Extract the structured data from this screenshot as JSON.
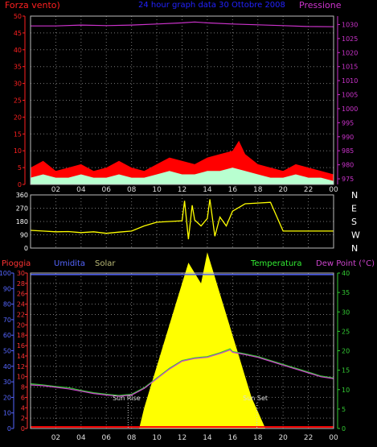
{
  "header": {
    "left_title": "Forza vento)",
    "center_title": "24 hour graph data  30 Ottobre 2008",
    "right_title": "Pressione",
    "colors": {
      "left": "#ff2020",
      "center": "#2222ff",
      "right": "#cc33cc"
    }
  },
  "chart_data": [
    {
      "type": "area",
      "panel": "wind-pressure",
      "x_ticks": [
        "02",
        "04",
        "06",
        "08",
        "10",
        "12",
        "14",
        "16",
        "18",
        "20",
        "22",
        "00"
      ],
      "y_left": {
        "ticks": [
          0,
          5,
          10,
          15,
          20,
          25,
          30,
          35,
          40,
          45,
          50
        ],
        "ylim": [
          0,
          50
        ],
        "color": "#ff2020"
      },
      "y_right": {
        "ticks": [
          975,
          980,
          985,
          990,
          995,
          1000,
          1005,
          1010,
          1015,
          1020,
          1025,
          1030
        ],
        "ylim": [
          973,
          1033
        ],
        "color": "#cc33cc"
      },
      "grid": true,
      "series": [
        {
          "role": "wind-gust",
          "color": "#ff0000",
          "x": [
            0,
            1,
            2,
            3,
            4,
            5,
            6,
            7,
            8,
            9,
            10,
            11,
            12,
            13,
            14,
            15,
            16,
            16.5,
            17,
            18,
            19,
            20,
            21,
            22,
            23,
            24
          ],
          "values": [
            5,
            7,
            4,
            5,
            6,
            4,
            5,
            7,
            5,
            4,
            6,
            8,
            7,
            6,
            8,
            9,
            10,
            13,
            9,
            6,
            5,
            4,
            6,
            5,
            4,
            3
          ]
        },
        {
          "role": "wind-speed",
          "color": "#b8ffd0",
          "x": [
            0,
            1,
            2,
            3,
            4,
            5,
            6,
            7,
            8,
            9,
            10,
            11,
            12,
            13,
            14,
            15,
            16,
            17,
            18,
            19,
            20,
            21,
            22,
            23,
            24
          ],
          "values": [
            2,
            3,
            2,
            2,
            3,
            2,
            2,
            3,
            2,
            2,
            3,
            4,
            3,
            3,
            4,
            4,
            5,
            4,
            3,
            2,
            2,
            3,
            2,
            2,
            1
          ]
        },
        {
          "role": "pressure",
          "color": "#cc33cc",
          "x": [
            0,
            2,
            4,
            6,
            8,
            10,
            12,
            13,
            14,
            16,
            18,
            20,
            22,
            24
          ],
          "values": [
            1029.5,
            1029.5,
            1029.8,
            1029.6,
            1029.8,
            1030.2,
            1030.6,
            1030.9,
            1030.6,
            1030.2,
            1029.9,
            1029.6,
            1029.3,
            1029.2
          ]
        }
      ]
    },
    {
      "type": "line",
      "panel": "wind-direction",
      "y_left": {
        "ticks": [
          0,
          90,
          180,
          270,
          360
        ],
        "ylim": [
          0,
          360
        ]
      },
      "y_right_labels": [
        "N",
        "W",
        "S",
        "E",
        "N"
      ],
      "grid": true,
      "series": [
        {
          "role": "direction",
          "color": "#ffff00",
          "x": [
            0,
            1,
            2,
            3,
            4,
            5,
            6,
            7,
            8,
            9,
            10,
            11,
            12,
            12.2,
            12.5,
            12.8,
            13,
            13.5,
            14,
            14.2,
            14.6,
            15,
            15.5,
            16,
            17,
            18,
            19,
            20,
            21,
            22,
            23,
            24
          ],
          "values": [
            120,
            115,
            110,
            112,
            105,
            110,
            100,
            108,
            115,
            150,
            175,
            180,
            185,
            320,
            60,
            290,
            190,
            150,
            200,
            330,
            80,
            210,
            150,
            250,
            300,
            305,
            310,
            115,
            115,
            115,
            115,
            115
          ]
        }
      ]
    },
    {
      "type": "area",
      "panel": "rain-humidity-solar-temp",
      "x_ticks": [
        "02",
        "04",
        "06",
        "08",
        "10",
        "12",
        "14",
        "16",
        "18",
        "20",
        "22",
        "00"
      ],
      "y_humidity": {
        "ticks": [
          0,
          10,
          20,
          30,
          40,
          50,
          60,
          70,
          80,
          90,
          100
        ],
        "ylim": [
          0,
          100
        ],
        "color": "#5566ff"
      },
      "y_rain": {
        "ticks": [
          0,
          2,
          4,
          6,
          8,
          10,
          12,
          14,
          16,
          18,
          20,
          22,
          24,
          26,
          28,
          30
        ],
        "ylim": [
          0,
          30
        ],
        "color": "#ff3333"
      },
      "y_temp": {
        "ticks": [
          0,
          5,
          10,
          15,
          20,
          25,
          30,
          35,
          40
        ],
        "ylim": [
          0,
          40
        ],
        "color": "#33cc33"
      },
      "grid": true,
      "series": [
        {
          "role": "solar",
          "color": "#ffff00",
          "x": [
            8.6,
            9,
            9.5,
            10,
            10.5,
            11,
            11.5,
            12,
            12.5,
            13,
            13.5,
            14,
            14.5,
            15,
            15.5,
            16,
            16.5,
            17,
            17.5,
            18.6
          ],
          "values": [
            0,
            4,
            8,
            12,
            16,
            20,
            24,
            28,
            32,
            30,
            28,
            34,
            30,
            26,
            22,
            18,
            14,
            10,
            6,
            0
          ]
        },
        {
          "role": "humidity",
          "color": "#5566ff",
          "x": [
            0,
            24
          ],
          "values": [
            99,
            99
          ]
        },
        {
          "role": "temperature",
          "color": "#33cc33",
          "x": [
            0,
            1,
            2,
            3,
            4,
            5,
            6,
            7,
            8,
            9,
            10,
            11,
            12,
            13,
            14,
            15,
            15.8,
            16,
            16.5,
            17,
            18,
            19,
            20,
            21,
            22,
            23,
            24
          ],
          "values": [
            11.5,
            11.2,
            10.8,
            10.5,
            9.8,
            9.2,
            8.8,
            8.5,
            8.8,
            10.5,
            13,
            15.5,
            17.5,
            18.2,
            18.5,
            19.5,
            20.5,
            19.8,
            19.5,
            19.2,
            18.5,
            17.5,
            16.5,
            15.5,
            14.5,
            13.5,
            13
          ]
        },
        {
          "role": "dew-point",
          "color": "#cc44cc",
          "x": [
            0,
            1,
            2,
            3,
            4,
            5,
            6,
            7,
            8,
            9,
            10,
            11,
            12,
            13,
            14,
            15,
            15.8,
            16,
            16.5,
            17,
            18,
            19,
            20,
            21,
            22,
            23,
            24
          ],
          "values": [
            11.2,
            11,
            10.6,
            10.2,
            9.6,
            9,
            8.6,
            8.3,
            8.6,
            10.3,
            12.8,
            15.3,
            17.3,
            18,
            18.3,
            19.3,
            20.2,
            19.6,
            19.3,
            19,
            18.3,
            17.3,
            16.3,
            15.3,
            14.3,
            13.3,
            12.8
          ]
        },
        {
          "role": "rain",
          "color": "#ff0000",
          "x": [
            0,
            24
          ],
          "values": [
            0.3,
            0.3
          ]
        }
      ],
      "annotations": [
        {
          "text": "Sun Rise",
          "x": 7.6
        },
        {
          "text": "Sun Set",
          "x": 17.8
        }
      ],
      "legend": [
        {
          "text": "Pioggia",
          "color": "#ff3333"
        },
        {
          "text": "Umidita",
          "color": "#5566ff"
        },
        {
          "text": "Solar",
          "color": "#bbbb77"
        },
        {
          "text": "Temperatura",
          "color": "#33ee33"
        },
        {
          "text": "Dew Point (°C)",
          "color": "#cc44cc"
        }
      ]
    }
  ]
}
